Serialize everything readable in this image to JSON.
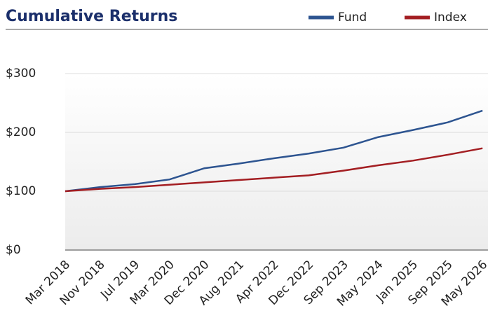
{
  "chart_data": {
    "type": "line",
    "title": "Cumulative Returns",
    "categories": [
      "Mar 2018",
      "Nov 2018",
      "Jul 2019",
      "Mar 2020",
      "Dec 2020",
      "Aug 2021",
      "Apr 2022",
      "Dec 2022",
      "Sep 2023",
      "May 2024",
      "Jan 2025",
      "Sep 2025",
      "May 2026"
    ],
    "series": [
      {
        "name": "Fund",
        "color": "#2d5490",
        "values": [
          100,
          107,
          112,
          120,
          139,
          147,
          156,
          164,
          174,
          192,
          204,
          217,
          237
        ]
      },
      {
        "name": "Index",
        "color": "#a31e22",
        "values": [
          100,
          104,
          107,
          111,
          115,
          119,
          123,
          127,
          135,
          144,
          152,
          162,
          173
        ]
      }
    ],
    "ylim": [
      0,
      300
    ],
    "yticks": [
      {
        "value": 0,
        "label": "$0"
      },
      {
        "value": 100,
        "label": "$100"
      },
      {
        "value": 200,
        "label": "$200"
      },
      {
        "value": 300,
        "label": "$300"
      }
    ],
    "grid": true,
    "legend": "top-right"
  }
}
